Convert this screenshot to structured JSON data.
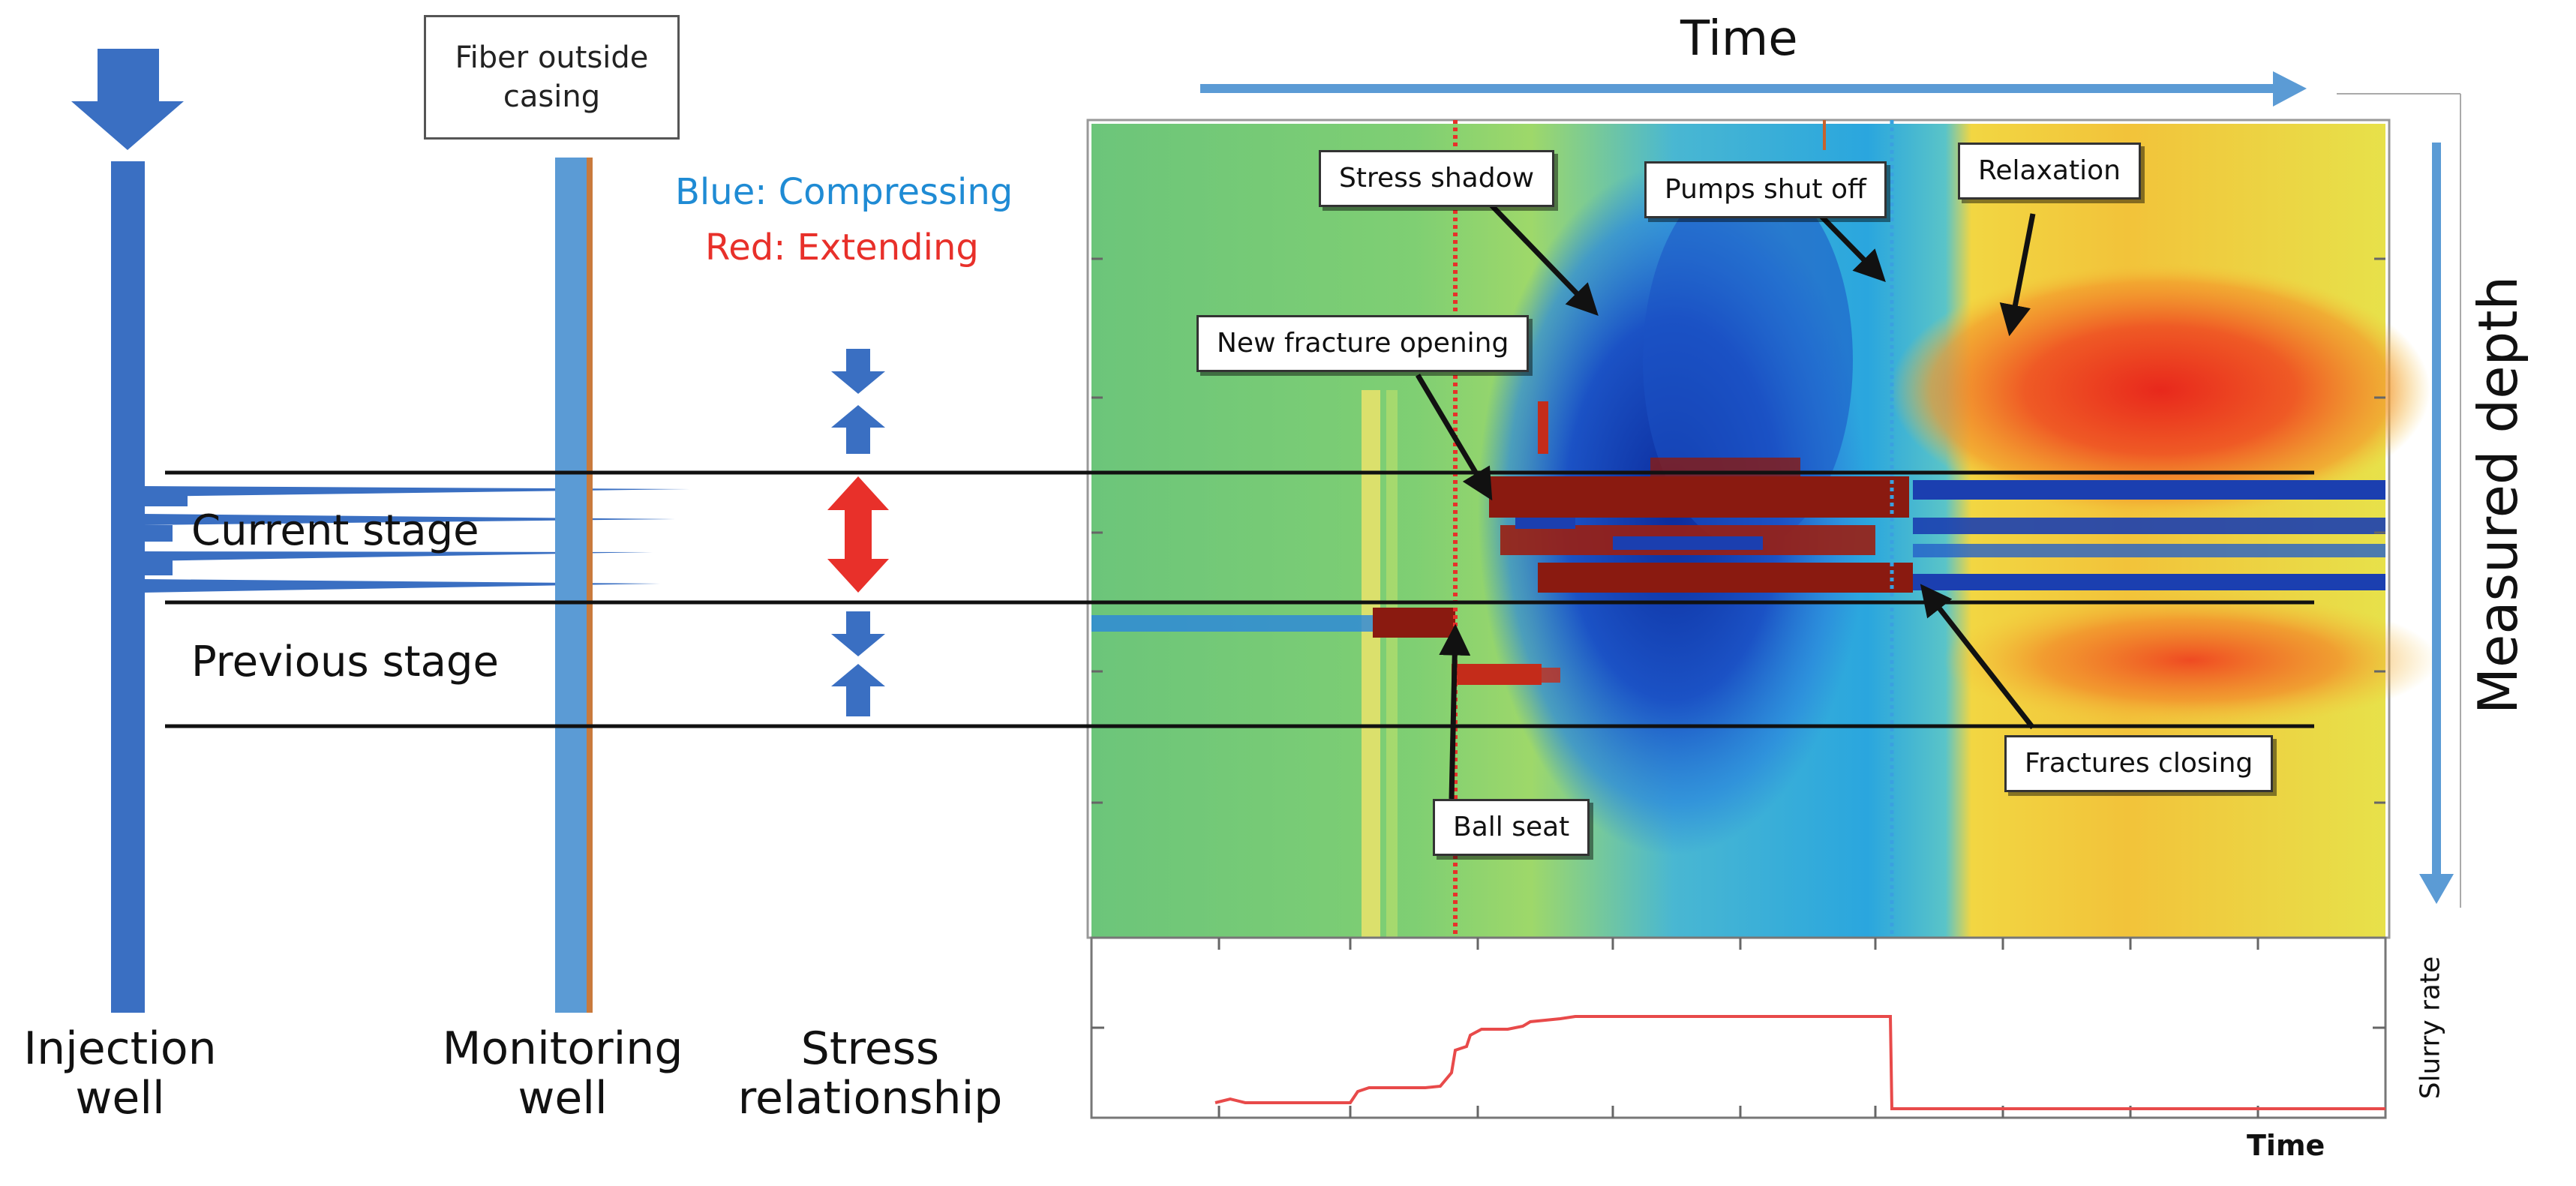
{
  "wells": {
    "injection_label": "Injection\nwell",
    "monitoring_label": "Monitoring\nwell",
    "stress_label": "Stress\nrelationship",
    "fiber_box": "Fiber outside\ncasing"
  },
  "stages": {
    "current": "Current stage",
    "previous": "Previous stage"
  },
  "legend": {
    "blue": "Blue: Compressing",
    "red": "Red: Extending",
    "blue_color": "#1f8bd4",
    "red_color": "#e8302a"
  },
  "axes": {
    "time_top": "Time",
    "depth": "Measured depth",
    "slurry": "Slurry rate",
    "time_bottom": "Time"
  },
  "callouts": {
    "stress_shadow": "Stress shadow",
    "pumps_shut_off": "Pumps shut off",
    "relaxation": "Relaxation",
    "new_fracture": "New fracture opening",
    "ball_seat": "Ball seat",
    "fractures_closing": "Fractures closing"
  }
}
